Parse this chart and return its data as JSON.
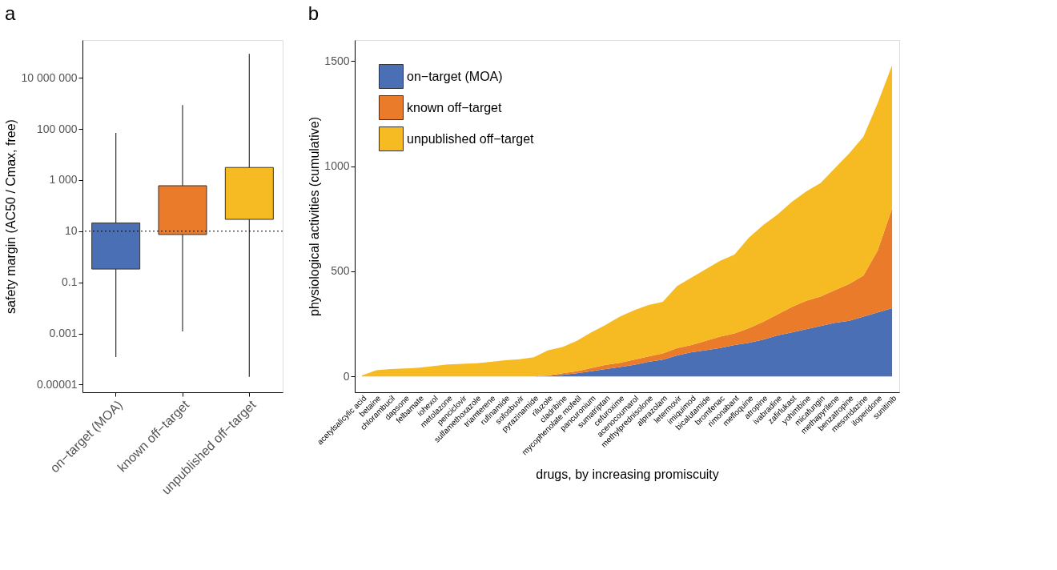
{
  "chart_data": [
    {
      "type": "box",
      "title": "a",
      "ylabel": "safety margin (AC50 / Cmax, free)",
      "log": true,
      "categories": [
        "on−target (MOA)",
        "known off−target",
        "unpublished off−target"
      ],
      "colors": [
        "#4a6fb5",
        "#e97b2b",
        "#f6bb22"
      ],
      "boxes": [
        {
          "low": 0.00012,
          "q1": 0.33,
          "q3": 21,
          "high": 70000
        },
        {
          "low": 0.0012,
          "q1": 7.4,
          "q3": 600,
          "high": 850000
        },
        {
          "low": 2e-05,
          "q1": 29,
          "q3": 3100,
          "high": 87000000
        }
      ],
      "ylim": [
        5e-06,
        300000000
      ],
      "yticks": [
        {
          "value": 1e-05,
          "label": "0.00001"
        },
        {
          "value": 0.001,
          "label": "0.001"
        },
        {
          "value": 0.1,
          "label": "0.1"
        },
        {
          "value": 10,
          "label": "10"
        },
        {
          "value": 1000,
          "label": "1 000"
        },
        {
          "value": 100000,
          "label": "100 000"
        },
        {
          "value": 10000000,
          "label": "10 000 000"
        }
      ],
      "ref_lines": [
        {
          "axis": "y",
          "value": 10,
          "line_style": "dotted",
          "color": "#000000"
        }
      ],
      "grid": false
    },
    {
      "type": "area",
      "title": "b",
      "xlabel": "drugs, by increasing promiscuity",
      "ylabel": "physiological activities (cumulative)",
      "stacked": true,
      "legend": "top left",
      "categories": [
        "acetylsalicylic acid",
        "betaine",
        "chlorambucil",
        "dapsone",
        "felbamate",
        "iohexol",
        "metolazone",
        "penciclovir",
        "sulfamethoxazole",
        "triamterene",
        "rufinamide",
        "sofosbuvir",
        "pyrazinamide",
        "riluzole",
        "cladribine",
        "mycophenolate mofetil",
        "pancuronium",
        "sumatriptan",
        "cefuroxime",
        "acenocoumarol",
        "methylprednisolone",
        "alprazolam",
        "letermovir",
        "imiquimod",
        "bicalutamide",
        "bromfenac",
        "rimonabant",
        "mefloquine",
        "atropine",
        "ivabradine",
        "zafirlukast",
        "yohimbine",
        "micafungin",
        "methapyrilene",
        "benzatropine",
        "mesoridazine",
        "iloperidone",
        "sunitinib"
      ],
      "series": [
        {
          "name": "on−target (MOA)",
          "color": "#4a6fb5",
          "values": [
            0,
            0,
            0,
            0,
            0,
            0,
            0,
            0,
            0,
            0,
            0,
            0,
            0,
            3,
            8,
            15,
            25,
            35,
            45,
            55,
            70,
            80,
            100,
            115,
            125,
            135,
            150,
            160,
            175,
            195,
            210,
            225,
            240,
            255,
            265,
            285,
            305,
            325
          ]
        },
        {
          "name": "known off−target",
          "color": "#e97b2b",
          "values": [
            0,
            0,
            0,
            0,
            0,
            0,
            0,
            0,
            0,
            0,
            0,
            0,
            0,
            2,
            7,
            10,
            15,
            20,
            20,
            25,
            25,
            30,
            35,
            35,
            45,
            55,
            55,
            70,
            85,
            100,
            120,
            135,
            140,
            155,
            175,
            195,
            295,
            475
          ]
        },
        {
          "name": "unpublished off−target",
          "color": "#f6bb22",
          "values": [
            5,
            30,
            35,
            38,
            42,
            50,
            57,
            60,
            63,
            70,
            77,
            82,
            92,
            120,
            125,
            145,
            170,
            190,
            220,
            235,
            245,
            245,
            295,
            320,
            340,
            360,
            375,
            430,
            460,
            475,
            500,
            520,
            540,
            580,
            620,
            660,
            700,
            680
          ]
        }
      ],
      "ylim": [
        -75,
        1600
      ],
      "yticks": [
        0,
        500,
        1000,
        1500
      ],
      "grid": false
    }
  ]
}
